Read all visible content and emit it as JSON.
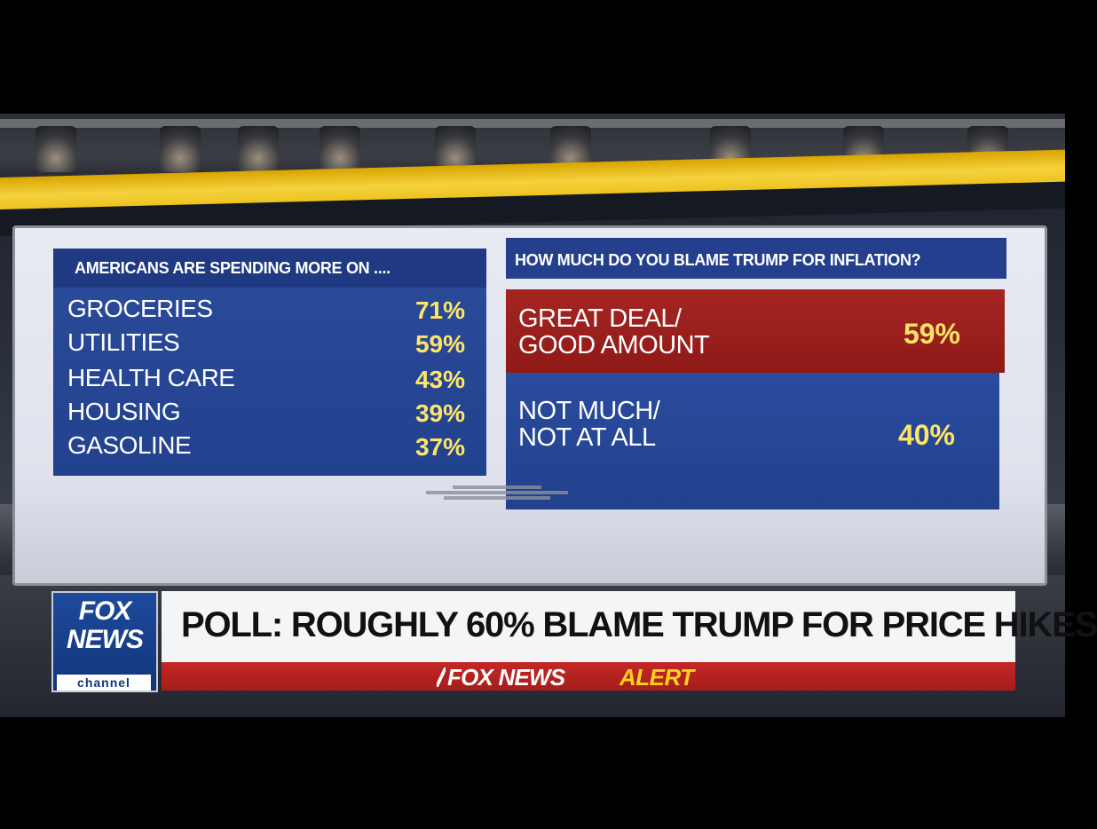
{
  "left_panel": {
    "header": "AMERICANS ARE SPENDING MORE ON ....",
    "rows": [
      {
        "label": "GROCERIES",
        "value": "71%"
      },
      {
        "label": "UTILITIES",
        "value": "59%"
      },
      {
        "label": "HEALTH CARE",
        "value": "43%"
      },
      {
        "label": "HOUSING",
        "value": "39%"
      },
      {
        "label": "GASOLINE",
        "value": "37%"
      }
    ]
  },
  "right_panel": {
    "header": "HOW MUCH DO YOU BLAME TRUMP FOR INFLATION?",
    "answers": [
      {
        "line1": "GREAT DEAL/",
        "line2": "GOOD AMOUNT",
        "value": "59%",
        "color": "#a52521"
      },
      {
        "line1": "NOT MUCH/",
        "line2": "NOT AT ALL",
        "value": "40%",
        "color": "#2a4b9e"
      }
    ]
  },
  "lower_third": {
    "logo_top": "FOX",
    "logo_bottom": "NEWS",
    "logo_channel": "channel",
    "headline": "POLL: ROUGHLY 60% BLAME TRUMP FOR PRICE HIKES",
    "alert_prefix": "FOX NEWS",
    "alert_word": "ALERT"
  },
  "colors": {
    "accent_yellow": "#ffe566",
    "alert_red": "#c42826",
    "panel_blue": "#22418e"
  }
}
